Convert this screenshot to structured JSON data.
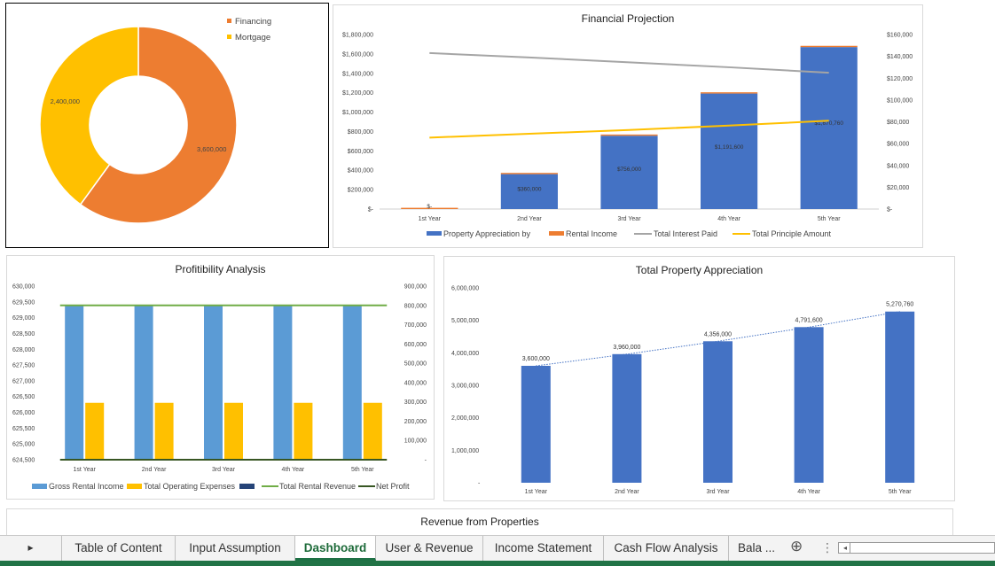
{
  "donut": {
    "legend": [
      {
        "name": "Financing",
        "color": "#ed7d31"
      },
      {
        "name": "Mortgage",
        "color": "#ffc000"
      }
    ],
    "chart_data": {
      "type": "pie",
      "categories": [
        "Financing",
        "Mortgage"
      ],
      "values": [
        3600000,
        2400000
      ],
      "value_labels": [
        "3,600,000",
        "2,400,000"
      ],
      "colors": [
        "#ed7d31",
        "#ffc000"
      ]
    }
  },
  "projection": {
    "title": "Financial Projection",
    "chart_data": {
      "type": "bar",
      "categories": [
        "1st Year",
        "2nd Year",
        "3rd Year",
        "4th Year",
        "5th Year"
      ],
      "left_ticks": [
        "$-",
        "$200,000",
        "$400,000",
        "$600,000",
        "$800,000",
        "$1,000,000",
        "$1,200,000",
        "$1,400,000",
        "$1,600,000",
        "$1,800,000"
      ],
      "right_ticks": [
        "$-",
        "$20,000",
        "$40,000",
        "$60,000",
        "$80,000",
        "$100,000",
        "$120,000",
        "$140,000",
        "$160,000"
      ],
      "ylim": [
        0,
        1800000
      ],
      "y2lim": [
        0,
        160000
      ],
      "series": [
        {
          "name": "Property Appreciation by",
          "type": "bar",
          "color": "#4472c4",
          "values": [
            0,
            360000,
            756000,
            1191600,
            1670760
          ],
          "labels": [
            "$-",
            "$360,000",
            "$756,000",
            "$1,191,600",
            "$1,670,760"
          ]
        },
        {
          "name": "Rental Income",
          "type": "bar",
          "color": "#ed7d31",
          "values": [
            14000,
            14000,
            14000,
            14000,
            14000
          ]
        },
        {
          "name": "Total Interest Paid",
          "type": "line",
          "axis": "right",
          "color": "#a5a5a5",
          "values": [
            143000,
            139000,
            134500,
            130000,
            125000
          ]
        },
        {
          "name": "Total Principle Amount",
          "type": "line",
          "axis": "right",
          "color": "#ffc000",
          "values": [
            65500,
            69000,
            72500,
            76500,
            81000
          ]
        }
      ]
    }
  },
  "profitability": {
    "title": "Profitibility Analysis",
    "chart_data": {
      "type": "bar",
      "categories": [
        "1st Year",
        "2nd Year",
        "3rd Year",
        "4th Year",
        "5th Year"
      ],
      "left_ticks": [
        "624,500",
        "625,000",
        "625,500",
        "626,000",
        "626,500",
        "627,000",
        "627,500",
        "628,000",
        "628,500",
        "629,000",
        "629,500",
        "630,000"
      ],
      "right_ticks": [
        "-",
        "100,000",
        "200,000",
        "300,000",
        "400,000",
        "500,000",
        "600,000",
        "700,000",
        "800,000",
        "900,000"
      ],
      "ylim": [
        624500,
        630000
      ],
      "y2lim": [
        0,
        900000
      ],
      "series": [
        {
          "name": "Gross Rental Income",
          "type": "bar",
          "axis": "left",
          "color": "#5b9bd5",
          "values": [
            629400,
            629400,
            629400,
            629400,
            629400
          ]
        },
        {
          "name": "Total Operating Expenses",
          "type": "bar",
          "axis": "right",
          "color": "#ffc000",
          "values": [
            295000,
            295000,
            295000,
            295000,
            295000
          ]
        },
        {
          "name": "Total Rental Revenue",
          "type": "line",
          "axis": "right",
          "color": "#70ad47",
          "values": [
            800000,
            800000,
            800000,
            800000,
            800000
          ]
        },
        {
          "name": "Net Profit",
          "type": "line",
          "axis": "left",
          "color": "#375623",
          "values": [
            624500,
            624500,
            624500,
            624500,
            624500
          ]
        }
      ],
      "legend_markers": [
        {
          "name": "Gross Rental Income",
          "kind": "box",
          "color": "#5b9bd5"
        },
        {
          "name": "Total Operating Expenses",
          "kind": "box",
          "color": "#ffc000"
        },
        {
          "name": "",
          "kind": "box",
          "color": "#264478"
        },
        {
          "name": "Total Rental Revenue",
          "kind": "line",
          "color": "#70ad47"
        },
        {
          "name": "Net Profit",
          "kind": "line",
          "color": "#375623"
        }
      ]
    }
  },
  "appreciation": {
    "title": "Total Property Appreciation",
    "chart_data": {
      "type": "bar",
      "categories": [
        "1st Year",
        "2nd Year",
        "3rd Year",
        "4th Year",
        "5th Year"
      ],
      "ticks": [
        "-",
        "1,000,000",
        "2,000,000",
        "3,000,000",
        "4,000,000",
        "5,000,000",
        "6,000,000"
      ],
      "ylim": [
        0,
        6000000
      ],
      "trendline": true,
      "series": [
        {
          "name": "",
          "type": "bar",
          "color": "#4472c4",
          "values": [
            3600000,
            3960000,
            4356000,
            4791600,
            5270760
          ],
          "labels": [
            "3,600,000",
            "3,960,000",
            "4,356,000",
            "4,791,600",
            "5,270,760"
          ]
        }
      ]
    }
  },
  "revenue": {
    "title": "Revenue from Properties"
  },
  "sheet_tabs": {
    "tabs": [
      "Table of Content",
      "Input Assumption",
      "Dashboard",
      "User & Revenue",
      "Income Statement",
      "Cash Flow Analysis",
      "Bala ..."
    ],
    "active": "Dashboard",
    "add_icon": "⊕",
    "more_icon": "⋮",
    "nav_icon": "▸"
  }
}
